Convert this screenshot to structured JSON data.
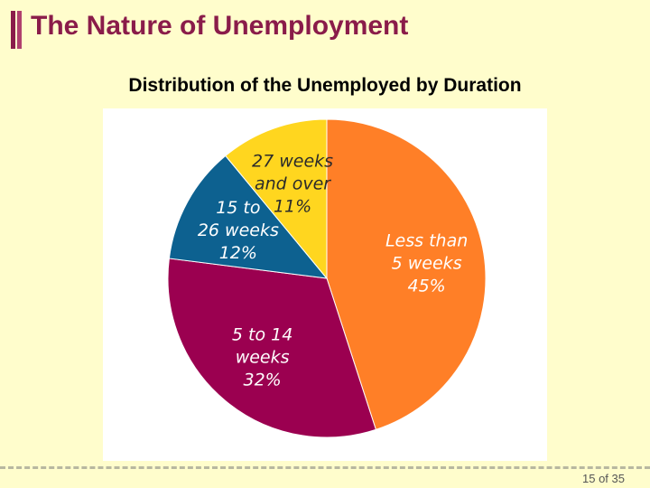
{
  "slide": {
    "title": "The Nature of Unemployment",
    "page_number": "15 of 35"
  },
  "colors": {
    "background": "#fffdcc",
    "title": "#8a1c4a",
    "accent_dark": "#8a1c4a",
    "accent_light": "#b0406e"
  },
  "chart_data": {
    "type": "pie",
    "title": "Distribution of the Unemployed by Duration",
    "slices": [
      {
        "label_lines": [
          "Less than",
          "5 weeks",
          "45%"
        ],
        "value": 45,
        "color": "#ff7f27",
        "label_style": "light"
      },
      {
        "label_lines": [
          "5 to 14",
          "weeks",
          "32%"
        ],
        "value": 32,
        "color": "#9b0050",
        "label_style": "light"
      },
      {
        "label_lines": [
          "15 to",
          "26 weeks",
          "12%"
        ],
        "value": 12,
        "color": "#0d6190",
        "label_style": "light"
      },
      {
        "label_lines": [
          "27 weeks",
          "and over",
          "11%"
        ],
        "value": 11,
        "color": "#ffd61f",
        "label_style": "dark"
      }
    ]
  }
}
